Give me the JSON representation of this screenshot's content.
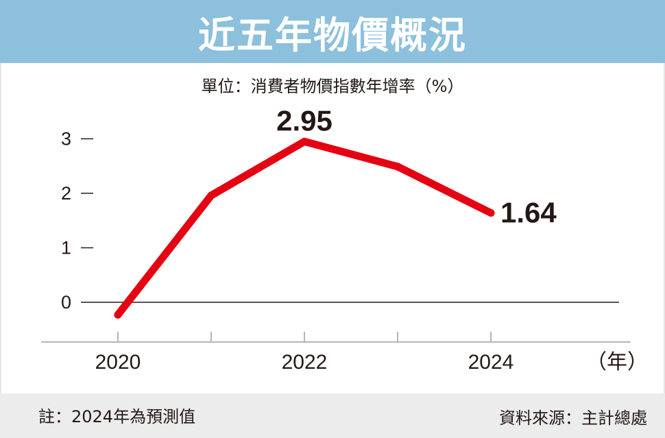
{
  "title": "近五年物價概況",
  "unit_label": "單位：消費者物價指數年增率（%）",
  "footer": {
    "note": "註：2024年為預測值",
    "source": "資料來源：主計總處"
  },
  "chart_data": {
    "type": "line",
    "x": [
      2020,
      2021,
      2022,
      2023,
      2024
    ],
    "values": [
      -0.23,
      1.96,
      2.95,
      2.49,
      1.64
    ],
    "x_tick_labels": [
      "2020",
      "",
      "2022",
      "",
      "2024"
    ],
    "x_unit_label": "（年）",
    "y_ticks": [
      "0",
      "1",
      "2",
      "3"
    ],
    "ylim": [
      -0.4,
      3.4
    ],
    "data_labels": [
      {
        "index": 2,
        "text": "2.95"
      },
      {
        "index": 4,
        "text": "1.64"
      }
    ],
    "line_color": "#e50012",
    "grid": false
  }
}
